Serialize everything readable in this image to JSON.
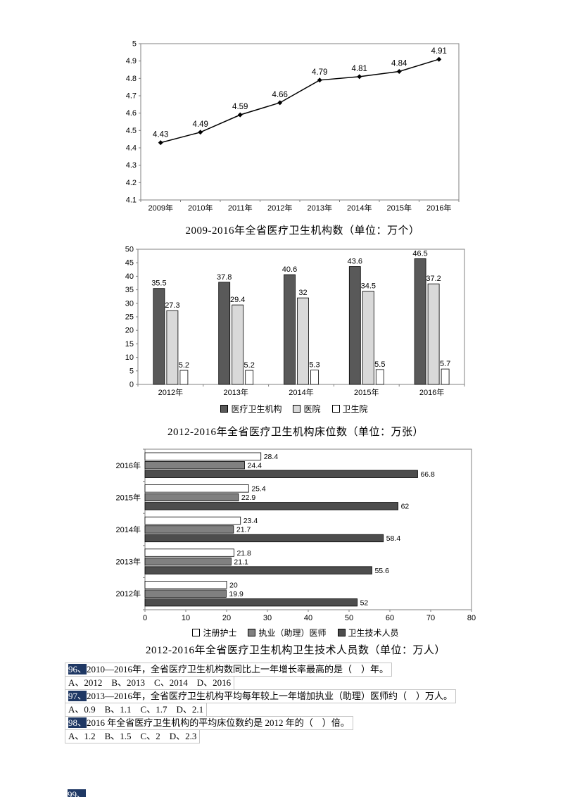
{
  "chart_data": [
    {
      "id": "line-chart",
      "type": "line",
      "title": "2009-2016年全省医疗卫生机构数（单位：万个）",
      "categories": [
        "2009年",
        "2010年",
        "2011年",
        "2012年",
        "2013年",
        "2014年",
        "2015年",
        "2016年"
      ],
      "values": [
        4.43,
        4.49,
        4.59,
        4.66,
        4.79,
        4.81,
        4.84,
        4.91
      ],
      "ylim": [
        4.1,
        5.0
      ],
      "ytick_step": 0.1,
      "line_color": "#000000",
      "marker": "diamond",
      "grid": false,
      "legend_position": "none"
    },
    {
      "id": "grouped-bar-chart",
      "type": "bar",
      "title": "2012-2016年全省医疗卫生机构床位数（单位：万张）",
      "categories": [
        "2012年",
        "2013年",
        "2014年",
        "2015年",
        "2016年"
      ],
      "series": [
        {
          "name": "医疗卫生机构",
          "color": "#595959",
          "values": [
            35.5,
            37.8,
            40.6,
            43.6,
            46.5
          ]
        },
        {
          "name": "医院",
          "color": "#d9d9d9",
          "values": [
            27.3,
            29.4,
            32,
            34.5,
            37.2
          ]
        },
        {
          "name": "卫生院",
          "color": "#ffffff",
          "values": [
            5.2,
            5.2,
            5.3,
            5.5,
            5.7
          ]
        }
      ],
      "ylim": [
        0,
        50
      ],
      "ytick_step": 5,
      "grid": false,
      "legend_position": "bottom"
    },
    {
      "id": "horizontal-bar-chart",
      "type": "horizontal-bar",
      "title": "2012-2016年全省医疗卫生机构卫生技术人员数（单位：万人）",
      "categories": [
        "2016年",
        "2015年",
        "2014年",
        "2013年",
        "2012年"
      ],
      "series": [
        {
          "name": "注册护士",
          "color": "#ffffff",
          "values": [
            28.4,
            25.4,
            23.4,
            21.8,
            20
          ]
        },
        {
          "name": "执业（助理）医师",
          "color": "#808080",
          "values": [
            24.4,
            22.9,
            21.7,
            21.1,
            19.9
          ]
        },
        {
          "name": "卫生技术人员",
          "color": "#4d4d4d",
          "values": [
            66.8,
            62,
            58.4,
            55.6,
            52
          ]
        }
      ],
      "xlim": [
        0,
        80
      ],
      "xtick_step": 10,
      "grid": false,
      "legend_position": "bottom"
    }
  ],
  "questions": [
    {
      "number": "96、",
      "text": "2010—2016年，全省医疗卫生机构数同比上一年增长率最高的是（    ）年。",
      "options": "A、2012    B、2013    C、2014    D、2016"
    },
    {
      "number": "97、",
      "text": "2013—2016年，全省医疗卫生机构平均每年较上一年增加执业（助理）医师约（    ）万人。",
      "options": "A、0.9    B、1.1    C、1.7    D、2.1"
    },
    {
      "number": "98、",
      "text": "2016 年全省医疗卫生机构的平均床位数约是 2012 年的（    ）倍。",
      "options": "A、1.2    B、1.5    C、2    D、2.3"
    }
  ],
  "partial_question": {
    "number": "99、"
  },
  "colors": {
    "highlight_bg": "#1f3864",
    "highlight_text": "#ffffff",
    "axis": "#808080"
  }
}
